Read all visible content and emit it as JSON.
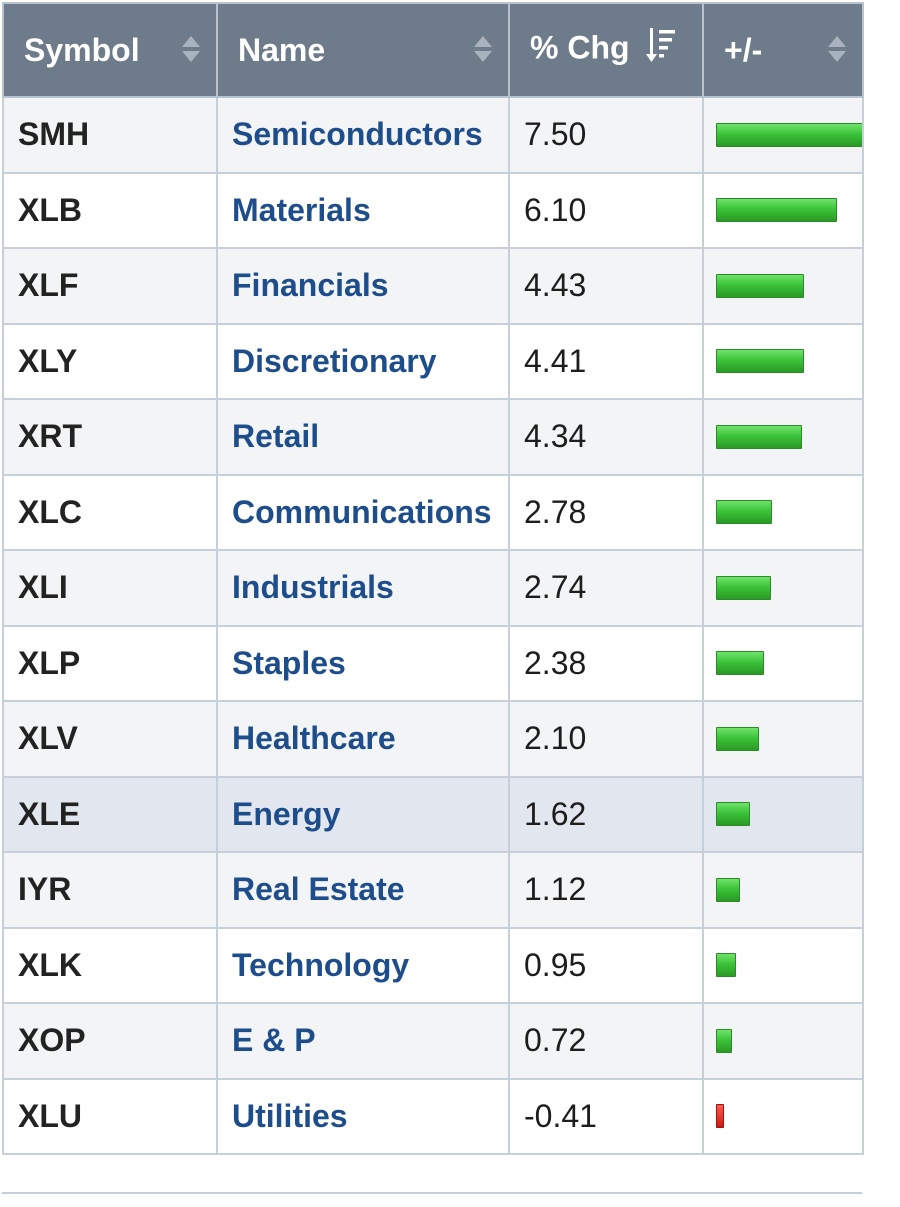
{
  "table": {
    "headers": {
      "symbol": "Symbol",
      "name": "Name",
      "chg": "% Chg",
      "bar": "+/-"
    },
    "bar_scale_max": 7.5,
    "colors": {
      "positive": "#3cc33a",
      "negative": "#cc1a14",
      "header_bg": "#6e7b8b",
      "link": "#1e4d8c"
    },
    "rows": [
      {
        "symbol": "SMH",
        "name": "Semiconductors",
        "chg": "7.50",
        "value": 7.5
      },
      {
        "symbol": "XLB",
        "name": "Materials",
        "chg": "6.10",
        "value": 6.1
      },
      {
        "symbol": "XLF",
        "name": "Financials",
        "chg": "4.43",
        "value": 4.43
      },
      {
        "symbol": "XLY",
        "name": "Discretionary",
        "chg": "4.41",
        "value": 4.41
      },
      {
        "symbol": "XRT",
        "name": "Retail",
        "chg": "4.34",
        "value": 4.34
      },
      {
        "symbol": "XLC",
        "name": "Communications",
        "chg": "2.78",
        "value": 2.78
      },
      {
        "symbol": "XLI",
        "name": "Industrials",
        "chg": "2.74",
        "value": 2.74
      },
      {
        "symbol": "XLP",
        "name": "Staples",
        "chg": "2.38",
        "value": 2.38
      },
      {
        "symbol": "XLV",
        "name": "Healthcare",
        "chg": "2.10",
        "value": 2.1
      },
      {
        "symbol": "XLE",
        "name": "Energy",
        "chg": "1.62",
        "value": 1.62,
        "highlighted": true
      },
      {
        "symbol": "IYR",
        "name": "Real Estate",
        "chg": "1.12",
        "value": 1.12
      },
      {
        "symbol": "XLK",
        "name": "Technology",
        "chg": "0.95",
        "value": 0.95
      },
      {
        "symbol": "XOP",
        "name": "E & P",
        "chg": "0.72",
        "value": 0.72
      },
      {
        "symbol": "XLU",
        "name": "Utilities",
        "chg": "-0.41",
        "value": -0.41
      }
    ]
  }
}
